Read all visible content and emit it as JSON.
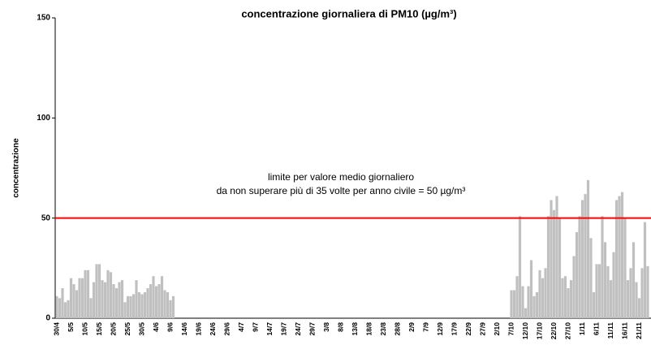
{
  "chart_data": {
    "type": "bar",
    "title": "concentrazione giornaliera di PM10 (µg/m³)",
    "y_label": "concentrazione",
    "color": "#c0c0c0",
    "ylim": [
      0,
      150
    ],
    "yticks": [
      0,
      50,
      100,
      150
    ],
    "threshold": {
      "value": 50,
      "color": "#ff0000",
      "label": [
        "limite per valore medio giornaliero",
        "da non superare più di 35 volte per anno civile = 50 µg/m³"
      ]
    },
    "categories": [
      "30/4",
      null,
      null,
      null,
      null,
      "5/5",
      null,
      null,
      null,
      null,
      "10/5",
      null,
      null,
      null,
      null,
      "15/5",
      null,
      null,
      null,
      null,
      "20/5",
      null,
      null,
      null,
      null,
      "25/5",
      null,
      null,
      null,
      null,
      "30/5",
      null,
      null,
      null,
      null,
      "4/6",
      null,
      null,
      null,
      null,
      "9/6",
      null,
      null,
      null,
      null,
      "14/6",
      null,
      null,
      null,
      null,
      "19/6",
      null,
      null,
      null,
      null,
      "24/6",
      null,
      null,
      null,
      null,
      "29/6",
      null,
      null,
      null,
      null,
      "4/7",
      null,
      null,
      null,
      null,
      "9/7",
      null,
      null,
      null,
      null,
      "14/7",
      null,
      null,
      null,
      null,
      "19/7",
      null,
      null,
      null,
      null,
      "24/7",
      null,
      null,
      null,
      null,
      "29/7",
      null,
      null,
      null,
      null,
      "3/8",
      null,
      null,
      null,
      null,
      "8/8",
      null,
      null,
      null,
      null,
      "13/8",
      null,
      null,
      null,
      null,
      "18/8",
      null,
      null,
      null,
      null,
      "23/8",
      null,
      null,
      null,
      null,
      "28/8",
      null,
      null,
      null,
      null,
      "2/9",
      null,
      null,
      null,
      null,
      "7/9",
      null,
      null,
      null,
      null,
      "12/9",
      null,
      null,
      null,
      null,
      "17/9",
      null,
      null,
      null,
      null,
      "22/9",
      null,
      null,
      null,
      null,
      "27/9",
      null,
      null,
      null,
      null,
      "2/10",
      null,
      null,
      null,
      null,
      "7/10",
      null,
      null,
      null,
      null,
      "12/10",
      null,
      null,
      null,
      null,
      "17/10",
      null,
      null,
      null,
      null,
      "22/10",
      null,
      null,
      null,
      null,
      "27/10",
      null,
      null,
      null,
      null,
      "1/11",
      null,
      null,
      null,
      null,
      "6/11",
      null,
      null,
      null,
      null,
      "11/11",
      null,
      null,
      null,
      null,
      "16/11",
      null,
      null,
      null,
      null,
      "21/11",
      null,
      null,
      null
    ],
    "values": [
      11,
      10,
      15,
      8,
      9,
      20,
      17,
      14,
      20,
      20,
      24,
      24,
      10,
      18,
      27,
      27,
      19,
      18,
      24,
      23,
      17,
      15,
      18,
      19,
      8,
      11,
      11,
      12,
      19,
      13,
      12,
      13,
      15,
      17,
      21,
      16,
      17,
      21,
      14,
      13,
      9,
      11,
      null,
      null,
      null,
      null,
      null,
      null,
      null,
      null,
      null,
      null,
      null,
      null,
      null,
      null,
      null,
      null,
      null,
      null,
      null,
      null,
      null,
      null,
      null,
      null,
      null,
      null,
      null,
      null,
      null,
      null,
      null,
      null,
      null,
      null,
      null,
      null,
      null,
      null,
      null,
      null,
      null,
      null,
      null,
      null,
      null,
      null,
      null,
      null,
      null,
      null,
      null,
      null,
      null,
      null,
      null,
      null,
      null,
      null,
      null,
      null,
      null,
      null,
      null,
      null,
      null,
      null,
      null,
      null,
      null,
      null,
      null,
      null,
      null,
      null,
      null,
      null,
      null,
      null,
      null,
      null,
      null,
      null,
      null,
      null,
      null,
      null,
      null,
      null,
      null,
      null,
      null,
      null,
      null,
      null,
      null,
      null,
      null,
      null,
      null,
      null,
      null,
      null,
      null,
      null,
      null,
      null,
      null,
      null,
      null,
      null,
      null,
      null,
      null,
      null,
      null,
      null,
      null,
      null,
      14,
      14,
      21,
      51,
      16,
      5,
      16,
      29,
      11,
      13,
      24,
      20,
      25,
      51,
      59,
      54,
      61,
      50,
      20,
      21,
      15,
      19,
      31,
      43,
      51,
      59,
      62,
      69,
      40,
      13,
      27,
      27,
      51,
      38,
      26,
      19,
      33,
      59,
      61,
      63,
      50,
      19,
      25,
      38,
      18,
      10,
      25,
      48,
      26
    ]
  }
}
